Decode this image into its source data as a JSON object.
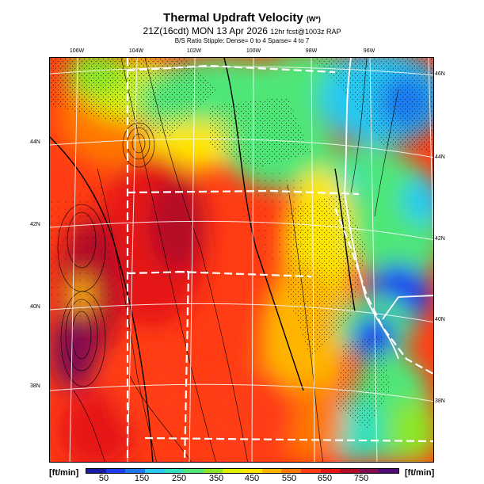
{
  "title": "Thermal Updraft Velocity",
  "title_unit": "(W*)",
  "subtitle": "21Z(16cdt) MON 13 Apr 2026",
  "subtitle_note": "12hr fcst@1003z RAP",
  "ratio_note": "B/S Ratio Stipple:  Dense= 0 to 4  Sparse= 4 to 7",
  "lon_labels": [
    "106W",
    "104W",
    "102W",
    "100W",
    "98W",
    "96W"
  ],
  "lat_labels_left": [
    "44N",
    "42N",
    "40N",
    "38N"
  ],
  "lat_labels_right": [
    "46N",
    "44N",
    "42N",
    "40N",
    "38N"
  ],
  "units_left": "[ft/min]",
  "units_right": "[ft/min]",
  "colorbar_labels": [
    "50",
    "150",
    "250",
    "350",
    "450",
    "550",
    "650",
    "750"
  ],
  "colors": {
    "scale": [
      "#1a1aa8",
      "#1e3cf0",
      "#1e78f0",
      "#28c8f0",
      "#32e0c0",
      "#50e678",
      "#8ce628",
      "#dcf000",
      "#ffe600",
      "#ffb400",
      "#ff7800",
      "#ff3c14",
      "#e61414",
      "#b40a28",
      "#820a50",
      "#500a78"
    ],
    "background": "#ffffff"
  }
}
